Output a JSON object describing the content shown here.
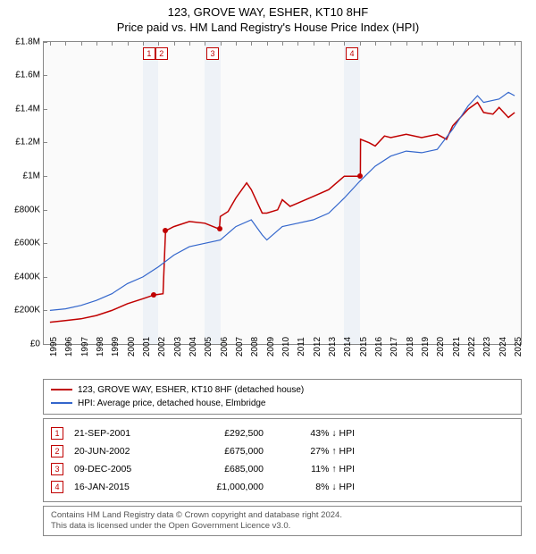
{
  "title_line1": "123, GROVE WAY, ESHER, KT10 8HF",
  "title_line2": "Price paid vs. HM Land Registry's House Price Index (HPI)",
  "chart": {
    "type": "line",
    "background_color": "#fafafa",
    "border_color": "#888888",
    "shaded_bands_color": "#eef2f7",
    "shaded_bands": [
      [
        2001,
        2002
      ],
      [
        2005,
        2006
      ],
      [
        2014,
        2015
      ]
    ],
    "x_domain": [
      1994.6,
      2025.4
    ],
    "x_ticks": [
      1995,
      1996,
      1997,
      1998,
      1999,
      2000,
      2001,
      2002,
      2003,
      2004,
      2005,
      2006,
      2007,
      2008,
      2009,
      2010,
      2011,
      2012,
      2013,
      2014,
      2015,
      2016,
      2017,
      2018,
      2019,
      2020,
      2021,
      2022,
      2023,
      2024,
      2025
    ],
    "y_domain": [
      0,
      1800000
    ],
    "y_ticks": [
      {
        "v": 0,
        "label": "£0"
      },
      {
        "v": 200000,
        "label": "£200K"
      },
      {
        "v": 400000,
        "label": "£400K"
      },
      {
        "v": 600000,
        "label": "£600K"
      },
      {
        "v": 800000,
        "label": "£800K"
      },
      {
        "v": 1000000,
        "label": "£1M"
      },
      {
        "v": 1200000,
        "label": "£1.2M"
      },
      {
        "v": 1400000,
        "label": "£1.4M"
      },
      {
        "v": 1600000,
        "label": "£1.6M"
      },
      {
        "v": 1800000,
        "label": "£1.8M"
      }
    ],
    "series": [
      {
        "name": "price_paid",
        "color": "#c00000",
        "line_width": 1.5,
        "data": [
          [
            1995,
            130000
          ],
          [
            1996,
            140000
          ],
          [
            1997,
            150000
          ],
          [
            1998,
            170000
          ],
          [
            1999,
            200000
          ],
          [
            2000,
            240000
          ],
          [
            2001,
            270000
          ],
          [
            2001.72,
            292500
          ],
          [
            2001.73,
            292500
          ],
          [
            2002.3,
            300000
          ],
          [
            2002.46,
            675000
          ],
          [
            2003,
            700000
          ],
          [
            2004,
            730000
          ],
          [
            2005,
            720000
          ],
          [
            2005.94,
            685000
          ],
          [
            2006,
            760000
          ],
          [
            2006.5,
            790000
          ],
          [
            2007,
            870000
          ],
          [
            2007.7,
            960000
          ],
          [
            2008,
            920000
          ],
          [
            2008.7,
            780000
          ],
          [
            2009,
            780000
          ],
          [
            2009.7,
            800000
          ],
          [
            2010,
            860000
          ],
          [
            2010.5,
            820000
          ],
          [
            2011,
            840000
          ],
          [
            2012,
            880000
          ],
          [
            2013,
            920000
          ],
          [
            2014,
            1000000
          ],
          [
            2015.04,
            1000000
          ],
          [
            2015.05,
            1220000
          ],
          [
            2015.6,
            1200000
          ],
          [
            2016,
            1180000
          ],
          [
            2016.6,
            1240000
          ],
          [
            2017,
            1230000
          ],
          [
            2018,
            1250000
          ],
          [
            2019,
            1230000
          ],
          [
            2020,
            1250000
          ],
          [
            2020.6,
            1220000
          ],
          [
            2021,
            1300000
          ],
          [
            2022,
            1400000
          ],
          [
            2022.6,
            1440000
          ],
          [
            2023,
            1380000
          ],
          [
            2023.6,
            1370000
          ],
          [
            2024,
            1410000
          ],
          [
            2024.6,
            1350000
          ],
          [
            2025,
            1380000
          ]
        ]
      },
      {
        "name": "hpi",
        "color": "#3366cc",
        "line_width": 1.2,
        "data": [
          [
            1995,
            200000
          ],
          [
            1996,
            210000
          ],
          [
            1997,
            230000
          ],
          [
            1998,
            260000
          ],
          [
            1999,
            300000
          ],
          [
            2000,
            360000
          ],
          [
            2001,
            400000
          ],
          [
            2002,
            460000
          ],
          [
            2003,
            530000
          ],
          [
            2004,
            580000
          ],
          [
            2005,
            600000
          ],
          [
            2006,
            620000
          ],
          [
            2007,
            700000
          ],
          [
            2008,
            740000
          ],
          [
            2008.7,
            650000
          ],
          [
            2009,
            620000
          ],
          [
            2010,
            700000
          ],
          [
            2011,
            720000
          ],
          [
            2012,
            740000
          ],
          [
            2013,
            780000
          ],
          [
            2014,
            870000
          ],
          [
            2015,
            970000
          ],
          [
            2016,
            1060000
          ],
          [
            2017,
            1120000
          ],
          [
            2018,
            1150000
          ],
          [
            2019,
            1140000
          ],
          [
            2020,
            1160000
          ],
          [
            2021,
            1280000
          ],
          [
            2022,
            1420000
          ],
          [
            2022.6,
            1480000
          ],
          [
            2023,
            1440000
          ],
          [
            2024,
            1460000
          ],
          [
            2024.6,
            1500000
          ],
          [
            2025,
            1480000
          ]
        ]
      }
    ],
    "markers": [
      {
        "n": "1",
        "x": 2001.72,
        "y": 292500,
        "box_x": 2001.4
      },
      {
        "n": "2",
        "x": 2002.47,
        "y": 675000,
        "box_x": 2002.2
      },
      {
        "n": "3",
        "x": 2005.94,
        "y": 685000,
        "box_x": 2005.5
      },
      {
        "n": "4",
        "x": 2015.04,
        "y": 1000000,
        "box_x": 2014.5
      }
    ],
    "marker_dot_color": "#c00000",
    "marker_box_border": "#c00000"
  },
  "legend": [
    {
      "color": "#c00000",
      "label": "123, GROVE WAY, ESHER, KT10 8HF (detached house)"
    },
    {
      "color": "#3366cc",
      "label": "HPI: Average price, detached house, Elmbridge"
    }
  ],
  "sales": [
    {
      "n": "1",
      "date": "21-SEP-2001",
      "price": "£292,500",
      "vs": "43% ↓ HPI"
    },
    {
      "n": "2",
      "date": "20-JUN-2002",
      "price": "£675,000",
      "vs": "27% ↑ HPI"
    },
    {
      "n": "3",
      "date": "09-DEC-2005",
      "price": "£685,000",
      "vs": "11% ↑ HPI"
    },
    {
      "n": "4",
      "date": "16-JAN-2015",
      "price": "£1,000,000",
      "vs": "8% ↓ HPI"
    }
  ],
  "footer_line1": "Contains HM Land Registry data © Crown copyright and database right 2024.",
  "footer_line2": "This data is licensed under the Open Government Licence v3.0."
}
